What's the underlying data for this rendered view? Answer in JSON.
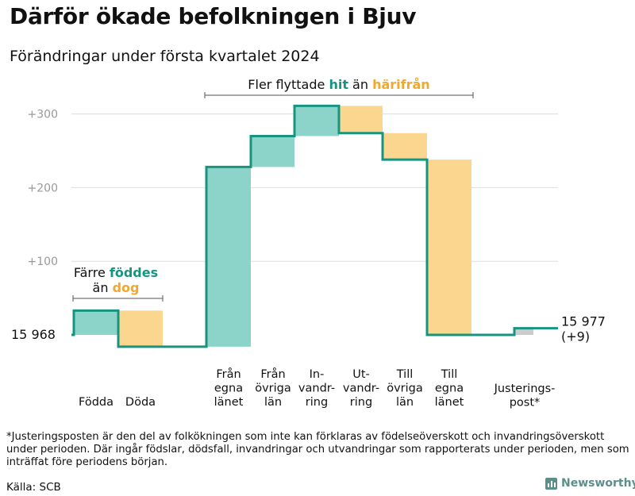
{
  "header": {
    "title": "Därför ökade befolkningen i Bjuv",
    "subtitle": "Förändringar under första kvartalet 2024"
  },
  "colors": {
    "teal": "#8cd4c9",
    "orange": "#fad68f",
    "gray": "#cccccc",
    "line": "#179480",
    "tealText": "#179480",
    "orangeText": "#f0a830"
  },
  "chart_data": {
    "type": "waterfall",
    "title": "Därför ökade befolkningen i Bjuv",
    "subtitle": "Förändringar under första kvartalet 2024",
    "start": {
      "label": "15  968",
      "value": 0
    },
    "end": {
      "label": "15 977",
      "sublabel": "(+9)",
      "value": 9
    },
    "ylim": [
      -20,
      320
    ],
    "yticks": [
      {
        "value": 100,
        "label": "+100"
      },
      {
        "value": 200,
        "label": "+200"
      },
      {
        "value": 300,
        "label": "+300"
      }
    ],
    "steps": [
      {
        "label": [
          "Födda"
        ],
        "change": 33,
        "color": "teal"
      },
      {
        "label": [
          "Döda"
        ],
        "change": -49,
        "color": "orange"
      },
      {
        "label": [
          "Från",
          "egna",
          "länet"
        ],
        "change": 244,
        "color": "teal"
      },
      {
        "label": [
          "Från",
          "övriga",
          "län"
        ],
        "change": 42,
        "color": "teal"
      },
      {
        "label": [
          "In-",
          "vandr-",
          "ring"
        ],
        "change": 41,
        "color": "teal"
      },
      {
        "label": [
          "Ut-",
          "vandr-",
          "ring"
        ],
        "change": -37,
        "color": "orange"
      },
      {
        "label": [
          "Till",
          "övriga",
          "län"
        ],
        "change": -36,
        "color": "orange"
      },
      {
        "label": [
          "Till",
          "egna",
          "länet"
        ],
        "change": -238,
        "color": "orange"
      },
      {
        "label": [
          "Justerings-",
          "post*"
        ],
        "change": 9,
        "color": "gray"
      }
    ],
    "annotations": {
      "left": {
        "line1": "Färre",
        "line1_highlight": "föddes",
        "line2": "än",
        "line2_highlight": "dog"
      },
      "top": {
        "prefix": "Fler flyttade",
        "highlight1": "hit",
        "middle": "än",
        "highlight2": "härifrån"
      }
    }
  },
  "footer": {
    "footnote": "*Justeringsposten är den del av folkökningen som inte kan förklaras av födelseöverskott och invandringsöverskott under perioden. Där ingår födslar, dödsfall, invandringar och utvandringar som rapporterats under perioden, men som inträffat före periodens början.",
    "source": "Källa: SCB",
    "brand": "Newsworthy"
  }
}
